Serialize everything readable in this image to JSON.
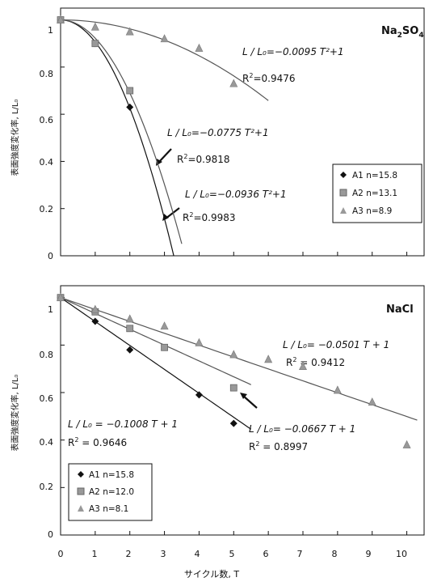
{
  "chart_data": [
    {
      "type": "scatter",
      "title": "Na2SO4",
      "title_main": "Na",
      "title_sub1": "2",
      "title_mid": "SO",
      "title_sub2": "4",
      "ylabel": "表面強度変化率, L/L₀",
      "xlim": [
        0,
        10.5
      ],
      "ylim": [
        0,
        1.05
      ],
      "yticks": [
        "0",
        "0.2",
        "0.4",
        "0.6",
        "0.8",
        "1"
      ],
      "grid": false,
      "legend_position": "right",
      "series": [
        {
          "name": "A1 n=15.8",
          "marker": "diamond",
          "points": [
            [
              0,
              1.0
            ],
            [
              1,
              0.9
            ],
            [
              2,
              0.63
            ]
          ],
          "fit": {
            "a": -0.0936,
            "power": 2,
            "x_end": 3.27
          }
        },
        {
          "name": "A2 n=13.1",
          "marker": "square",
          "points": [
            [
              0,
              1.0
            ],
            [
              1,
              0.9
            ],
            [
              2,
              0.7
            ]
          ],
          "fit": {
            "a": -0.0775,
            "power": 2,
            "x_end": 3.5
          }
        },
        {
          "name": "A3 n=8.9",
          "marker": "triangle",
          "points": [
            [
              0,
              1.0
            ],
            [
              1,
              0.97
            ],
            [
              2,
              0.95
            ],
            [
              3,
              0.92
            ],
            [
              4,
              0.88
            ],
            [
              5,
              0.73
            ]
          ],
          "fit": {
            "a": -0.0095,
            "power": 2,
            "x_end": 6.0
          }
        }
      ],
      "annotations": [
        {
          "eq": "L / L₀=−0.0095 T²+1",
          "r2_lbl": "R",
          "r2_exp": "2",
          "r2_val": "=0.9476"
        },
        {
          "eq": "L / L₀=−0.0775 T²+1",
          "r2_lbl": "R",
          "r2_exp": "2",
          "r2_val": "=0.9818"
        },
        {
          "eq": "L / L₀=−0.0936 T²+1",
          "r2_lbl": "R",
          "r2_exp": "2",
          "r2_val": "=0.9983"
        }
      ]
    },
    {
      "type": "scatter",
      "title": "NaCl",
      "ylabel": "表面強度変化率, L/L₀",
      "xlabel": "サイクル数, T",
      "xlim": [
        0,
        10.5
      ],
      "ylim": [
        0,
        1.05
      ],
      "xticks": [
        "0",
        "1",
        "2",
        "3",
        "4",
        "5",
        "6",
        "7",
        "8",
        "9",
        "10"
      ],
      "yticks": [
        "0",
        "0.2",
        "0.4",
        "0.6",
        "0.8",
        "1"
      ],
      "grid": false,
      "legend_position": "bottom-left",
      "series": [
        {
          "name": "A1 n=15.8",
          "marker": "diamond",
          "points": [
            [
              0,
              1.0
            ],
            [
              1,
              0.9
            ],
            [
              2,
              0.78
            ],
            [
              4,
              0.59
            ],
            [
              5,
              0.47
            ]
          ],
          "fit": {
            "a": -0.1008,
            "power": 1,
            "x_end": 5.5
          }
        },
        {
          "name": "A2 n=12.0",
          "marker": "square",
          "points": [
            [
              0,
              1.0
            ],
            [
              1,
              0.94
            ],
            [
              2,
              0.87
            ],
            [
              3,
              0.79
            ],
            [
              5,
              0.62
            ]
          ],
          "fit": {
            "a": -0.0667,
            "power": 1,
            "x_end": 5.5
          }
        },
        {
          "name": "A3 n=8.1",
          "marker": "triangle",
          "points": [
            [
              0,
              1.0
            ],
            [
              1,
              0.95
            ],
            [
              2,
              0.91
            ],
            [
              3,
              0.88
            ],
            [
              4,
              0.81
            ],
            [
              5,
              0.76
            ],
            [
              6,
              0.74
            ],
            [
              7,
              0.71
            ],
            [
              8,
              0.61
            ],
            [
              9,
              0.56
            ],
            [
              10,
              0.38
            ]
          ],
          "fit": {
            "a": -0.0501,
            "power": 1,
            "x_end": 10.3
          }
        }
      ],
      "annotations": [
        {
          "eq": "L / L₀= −0.0501 T + 1",
          "r2_lbl": "R",
          "r2_exp": "2",
          "r2_val": " = 0.9412"
        },
        {
          "eq": "L / L₀ = −0.1008 T + 1",
          "r2_lbl": "R",
          "r2_exp": "2",
          "r2_val": " = 0.9646"
        },
        {
          "eq": "L / L₀= −0.0667 T + 1",
          "r2_lbl": "R",
          "r2_exp": "2",
          "r2_val": " = 0.8997"
        }
      ]
    }
  ]
}
